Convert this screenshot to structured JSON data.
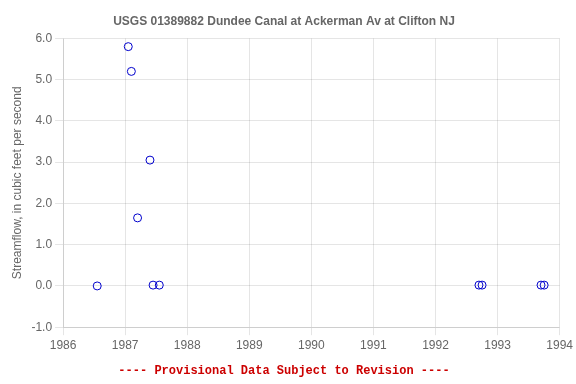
{
  "chart_data": {
    "type": "scatter",
    "title": "USGS 01389882 Dundee Canal at Ackerman Av at Clifton NJ",
    "ylabel": "Streamflow, in cubic feet per second",
    "annotations": [
      {
        "text": "---- Provisional Data Subject to Revision ----",
        "color": "#cc0000"
      }
    ],
    "x": [
      1986.55,
      1987.05,
      1987.1,
      1987.2,
      1987.4,
      1987.45,
      1987.55,
      1992.7,
      1992.75,
      1993.7,
      1993.75
    ],
    "values": [
      0.0,
      5.8,
      5.2,
      1.65,
      3.05,
      0.02,
      0.02,
      0.02,
      0.02,
      0.02,
      0.02
    ],
    "color": "#0000cc",
    "marker": "circle",
    "xlim": [
      1986,
      1994
    ],
    "xticks": [
      1986,
      1987,
      1988,
      1989,
      1990,
      1991,
      1992,
      1993,
      1994
    ],
    "ylim": [
      -1.0,
      6.0
    ],
    "yticks": [
      {
        "value": -1.0,
        "label": "-1.0"
      },
      {
        "value": 0.0,
        "label": "0.0"
      },
      {
        "value": 1.0,
        "label": "1.0"
      },
      {
        "value": 2.0,
        "label": "2.0"
      },
      {
        "value": 3.0,
        "label": "3.0"
      },
      {
        "value": 4.0,
        "label": "4.0"
      },
      {
        "value": 5.0,
        "label": "5.0"
      },
      {
        "value": 6.0,
        "label": "6.0"
      }
    ],
    "grid": true
  }
}
